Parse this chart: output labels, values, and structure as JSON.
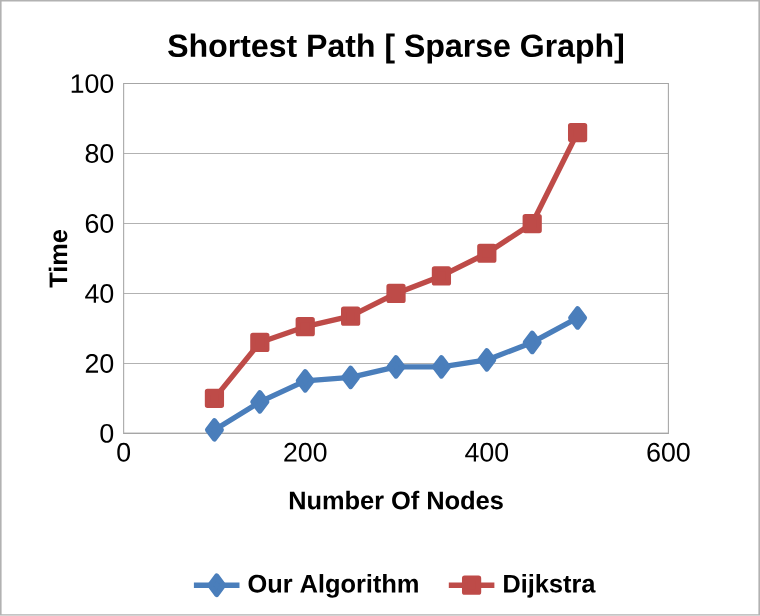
{
  "chart_data": {
    "type": "line",
    "title": "Shortest Path [ Sparse Graph]",
    "xlabel": "Number Of Nodes",
    "ylabel": "Time",
    "x": [
      100,
      150,
      200,
      250,
      300,
      350,
      400,
      450,
      500
    ],
    "series": [
      {
        "name": "Our Algorithm",
        "color": "#4a7ebb",
        "marker": "diamond",
        "values": [
          1,
          9,
          15,
          16,
          19,
          19,
          21,
          26,
          33
        ]
      },
      {
        "name": "Dijkstra",
        "color": "#be4b48",
        "marker": "square",
        "values": [
          10,
          26,
          30.5,
          33.5,
          40,
          45,
          51.5,
          60,
          86
        ]
      }
    ],
    "xlim": [
      0,
      600
    ],
    "xticks": [
      0,
      200,
      400,
      600
    ],
    "ylim": [
      0,
      100
    ],
    "yticks": [
      0,
      20,
      40,
      60,
      80,
      100
    ],
    "grid": "y",
    "legend": "bottom",
    "line_style": "solid"
  }
}
